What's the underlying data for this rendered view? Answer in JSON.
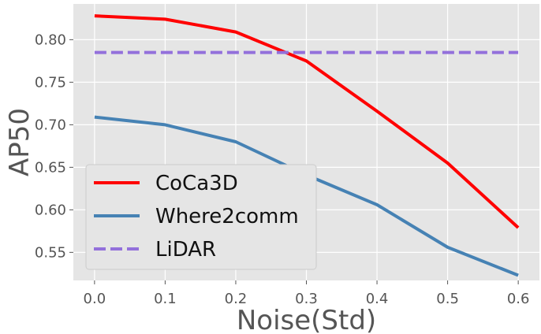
{
  "chart_data": {
    "type": "line",
    "title": "",
    "xlabel": "Noise(Std)",
    "ylabel": "AP50",
    "x": [
      0.0,
      0.1,
      0.2,
      0.3,
      0.4,
      0.5,
      0.6
    ],
    "x_tick_labels": [
      "0.0",
      "0.1",
      "0.2",
      "0.3",
      "0.4",
      "0.5",
      "0.6"
    ],
    "y_ticks": [
      0.55,
      0.6,
      0.65,
      0.7,
      0.75,
      0.8
    ],
    "y_tick_labels": [
      "0.55",
      "0.60",
      "0.65",
      "0.70",
      "0.75",
      "0.80"
    ],
    "xlim": [
      -0.03,
      0.63
    ],
    "ylim": [
      0.517,
      0.842
    ],
    "grid": true,
    "legend_position": "lower-left",
    "series": [
      {
        "name": "CoCa3D",
        "values": [
          0.828,
          0.824,
          0.809,
          0.775,
          0.716,
          0.655,
          0.579
        ],
        "color": "#ff0000",
        "style": "solid"
      },
      {
        "name": "Where2comm",
        "values": [
          0.709,
          0.7,
          0.68,
          0.641,
          0.606,
          0.556,
          0.523
        ],
        "color": "#4682b4",
        "style": "solid"
      },
      {
        "name": "LiDAR",
        "values": [
          0.785,
          0.785,
          0.785,
          0.785,
          0.785,
          0.785,
          0.785
        ],
        "color": "#9370db",
        "style": "dashed"
      }
    ]
  }
}
